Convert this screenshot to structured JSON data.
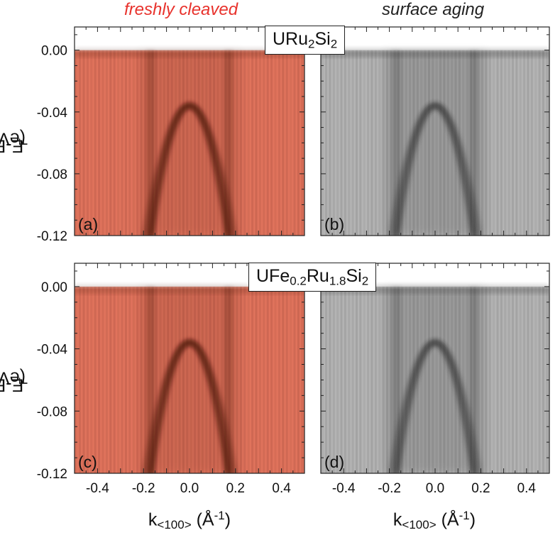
{
  "figure": {
    "col_titles": [
      {
        "text": "freshly cleaved",
        "color": "#e8322c"
      },
      {
        "text": "surface aging",
        "color": "#222222"
      }
    ],
    "ylabel": {
      "base": "E-E",
      "sub": "F",
      "unit": " (eV)"
    },
    "xlabel": {
      "base": "k",
      "sub": "<100>",
      "unit_pre": " (Å",
      "sup": "-1",
      "unit_post": ")"
    },
    "compounds": [
      {
        "parts": [
          "URu",
          "2",
          "Si",
          "2"
        ]
      },
      {
        "parts": [
          "UFe",
          "0.2",
          "Ru",
          "1.8",
          "Si",
          "2"
        ]
      }
    ],
    "panel_labels": [
      "(a)",
      "(b)",
      "(c)",
      "(d)"
    ],
    "colors": {
      "fresh": "#e0735c",
      "fresh_dark": "#3a0a06",
      "aged": "#b4b4b4",
      "aged_dark": "#1e1e1e"
    }
  },
  "chart_data": [
    {
      "type": "heatmap",
      "panel": "(a)",
      "compound": "URu2Si2",
      "condition": "freshly cleaved",
      "xlim": [
        -0.5,
        0.5
      ],
      "ylim": [
        -0.12,
        0.015
      ],
      "xticks": [],
      "yticks": [
        "0.00",
        "-0.04",
        "-0.08",
        "-0.12"
      ]
    },
    {
      "type": "heatmap",
      "panel": "(b)",
      "compound": "URu2Si2",
      "condition": "surface aging",
      "xlim": [
        -0.5,
        0.5
      ],
      "ylim": [
        -0.12,
        0.015
      ],
      "xticks": [],
      "yticks": []
    },
    {
      "type": "heatmap",
      "panel": "(c)",
      "compound": "UFe0.2Ru1.8Si2",
      "condition": "freshly cleaved",
      "xlim": [
        -0.5,
        0.5
      ],
      "ylim": [
        -0.12,
        0.015
      ],
      "xticks": [
        "-0.4",
        "-0.2",
        "0.0",
        "0.2",
        "0.4"
      ],
      "yticks": [
        "0.00",
        "-0.04",
        "-0.08",
        "-0.12"
      ]
    },
    {
      "type": "heatmap",
      "panel": "(d)",
      "compound": "UFe0.2Ru1.8Si2",
      "condition": "surface aging",
      "xlim": [
        -0.5,
        0.5
      ],
      "ylim": [
        -0.12,
        0.015
      ],
      "xticks": [
        "-0.4",
        "-0.2",
        "0.0",
        "0.2",
        "0.4"
      ],
      "yticks": []
    }
  ]
}
